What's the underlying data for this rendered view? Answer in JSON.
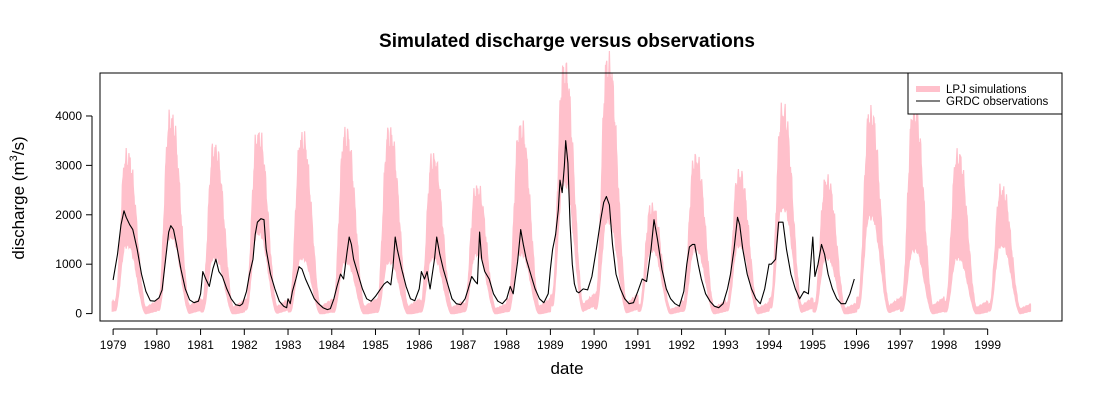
{
  "chart_data": {
    "type": "line",
    "title": "Simulated discharge versus observations",
    "xlabel": "date",
    "ylabel": "discharge (m³/s)",
    "ylabel_main": "discharge (m",
    "ylabel_sup": "3",
    "ylabel_end": "/s)",
    "xlim": [
      1978.7,
      2000.7
    ],
    "ylim": [
      -150,
      4870
    ],
    "x_ticks": [
      1979,
      1980,
      1981,
      1982,
      1983,
      1984,
      1985,
      1986,
      1987,
      1988,
      1989,
      1990,
      1991,
      1992,
      1993,
      1994,
      1995,
      1996,
      1997,
      1998,
      1999
    ],
    "x_tick_labels": [
      "1979",
      "1980",
      "1981",
      "1982",
      "1983",
      "1984",
      "1985",
      "1986",
      "1987",
      "1988",
      "1989",
      "1990",
      "1991",
      "1992",
      "1993",
      "1994",
      "1995",
      "1996",
      "1997",
      "1998",
      "1999"
    ],
    "y_ticks": [
      0,
      1000,
      2000,
      3000,
      4000
    ],
    "y_tick_labels": [
      "0",
      "1000",
      "2000",
      "3000",
      "4000"
    ],
    "legend": {
      "position": "top-right",
      "entries": [
        "LPJ simulations",
        "GRDC observations"
      ]
    },
    "series": [
      {
        "name": "LPJ simulations",
        "color": "#FFC0CB",
        "style": "band",
        "annual_peaks": [
          {
            "year": 1979,
            "low_max": 1700,
            "high_max": 3050
          },
          {
            "year": 1980,
            "low_max": 1900,
            "high_max": 3780
          },
          {
            "year": 1981,
            "low_max": 1400,
            "high_max": 3200
          },
          {
            "year": 1982,
            "low_max": 2000,
            "high_max": 3450
          },
          {
            "year": 1983,
            "low_max": 1400,
            "high_max": 3400
          },
          {
            "year": 1984,
            "low_max": 1300,
            "high_max": 3480
          },
          {
            "year": 1985,
            "low_max": 1300,
            "high_max": 3500
          },
          {
            "year": 1986,
            "low_max": 1400,
            "high_max": 3000
          },
          {
            "year": 1987,
            "low_max": 1500,
            "high_max": 2420
          },
          {
            "year": 1988,
            "low_max": 1500,
            "high_max": 3600
          },
          {
            "year": 1989,
            "low_max": 3200,
            "high_max": 4720
          },
          {
            "year": 1990,
            "low_max": 2300,
            "high_max": 4850
          },
          {
            "year": 1991,
            "low_max": 1600,
            "high_max": 2050
          },
          {
            "year": 1992,
            "low_max": 1600,
            "high_max": 3000
          },
          {
            "year": 1993,
            "low_max": 1700,
            "high_max": 2700
          },
          {
            "year": 1994,
            "low_max": 2600,
            "high_max": 3920
          },
          {
            "year": 1995,
            "low_max": 1400,
            "high_max": 2570
          },
          {
            "year": 1996,
            "low_max": 2400,
            "high_max": 3870
          },
          {
            "year": 1997,
            "low_max": 1600,
            "high_max": 3920
          },
          {
            "year": 1998,
            "low_max": 1400,
            "high_max": 3050
          },
          {
            "year": 1999,
            "low_max": 1700,
            "high_max": 2400
          }
        ]
      },
      {
        "name": "GRDC observations",
        "color": "#000000",
        "style": "line",
        "points": [
          [
            1979.0,
            680
          ],
          [
            1979.1,
            1200
          ],
          [
            1979.18,
            1800
          ],
          [
            1979.25,
            2080
          ],
          [
            1979.3,
            1950
          ],
          [
            1979.38,
            1800
          ],
          [
            1979.45,
            1700
          ],
          [
            1979.55,
            1300
          ],
          [
            1979.65,
            800
          ],
          [
            1979.75,
            450
          ],
          [
            1979.85,
            260
          ],
          [
            1979.95,
            250
          ],
          [
            1980.05,
            320
          ],
          [
            1980.12,
            480
          ],
          [
            1980.2,
            1100
          ],
          [
            1980.27,
            1650
          ],
          [
            1980.32,
            1780
          ],
          [
            1980.38,
            1700
          ],
          [
            1980.45,
            1400
          ],
          [
            1980.55,
            900
          ],
          [
            1980.65,
            500
          ],
          [
            1980.75,
            280
          ],
          [
            1980.85,
            220
          ],
          [
            1980.95,
            250
          ],
          [
            1981.0,
            400
          ],
          [
            1981.05,
            850
          ],
          [
            1981.12,
            700
          ],
          [
            1981.2,
            550
          ],
          [
            1981.28,
            900
          ],
          [
            1981.35,
            1100
          ],
          [
            1981.42,
            850
          ],
          [
            1981.5,
            750
          ],
          [
            1981.6,
            500
          ],
          [
            1981.7,
            300
          ],
          [
            1981.8,
            180
          ],
          [
            1981.9,
            160
          ],
          [
            1981.96,
            200
          ],
          [
            1982.05,
            450
          ],
          [
            1982.12,
            800
          ],
          [
            1982.2,
            1100
          ],
          [
            1982.25,
            1600
          ],
          [
            1982.3,
            1850
          ],
          [
            1982.38,
            1920
          ],
          [
            1982.45,
            1900
          ],
          [
            1982.5,
            1300
          ],
          [
            1982.6,
            800
          ],
          [
            1982.7,
            500
          ],
          [
            1982.8,
            250
          ],
          [
            1982.9,
            150
          ],
          [
            1982.97,
            120
          ],
          [
            1983.0,
            300
          ],
          [
            1983.05,
            200
          ],
          [
            1983.1,
            450
          ],
          [
            1983.18,
            700
          ],
          [
            1983.25,
            950
          ],
          [
            1983.32,
            900
          ],
          [
            1983.4,
            700
          ],
          [
            1983.5,
            500
          ],
          [
            1983.6,
            300
          ],
          [
            1983.7,
            200
          ],
          [
            1983.8,
            120
          ],
          [
            1983.9,
            80
          ],
          [
            1983.97,
            100
          ],
          [
            1984.05,
            300
          ],
          [
            1984.12,
            550
          ],
          [
            1984.2,
            800
          ],
          [
            1984.27,
            700
          ],
          [
            1984.35,
            1250
          ],
          [
            1984.4,
            1550
          ],
          [
            1984.45,
            1400
          ],
          [
            1984.5,
            1100
          ],
          [
            1984.6,
            800
          ],
          [
            1984.7,
            500
          ],
          [
            1984.8,
            300
          ],
          [
            1984.9,
            250
          ],
          [
            1985.0,
            350
          ],
          [
            1985.1,
            480
          ],
          [
            1985.2,
            600
          ],
          [
            1985.27,
            650
          ],
          [
            1985.35,
            580
          ],
          [
            1985.4,
            950
          ],
          [
            1985.45,
            1550
          ],
          [
            1985.5,
            1300
          ],
          [
            1985.6,
            900
          ],
          [
            1985.7,
            550
          ],
          [
            1985.8,
            300
          ],
          [
            1985.9,
            260
          ],
          [
            1986.0,
            500
          ],
          [
            1986.05,
            850
          ],
          [
            1986.12,
            700
          ],
          [
            1986.18,
            850
          ],
          [
            1986.25,
            500
          ],
          [
            1986.35,
            1100
          ],
          [
            1986.4,
            1550
          ],
          [
            1986.47,
            1200
          ],
          [
            1986.55,
            900
          ],
          [
            1986.65,
            600
          ],
          [
            1986.75,
            300
          ],
          [
            1986.85,
            200
          ],
          [
            1986.95,
            180
          ],
          [
            1987.05,
            300
          ],
          [
            1987.12,
            500
          ],
          [
            1987.2,
            750
          ],
          [
            1987.28,
            650
          ],
          [
            1987.33,
            600
          ],
          [
            1987.38,
            1650
          ],
          [
            1987.43,
            1100
          ],
          [
            1987.5,
            850
          ],
          [
            1987.6,
            700
          ],
          [
            1987.7,
            400
          ],
          [
            1987.8,
            250
          ],
          [
            1987.9,
            200
          ],
          [
            1988.0,
            300
          ],
          [
            1988.08,
            550
          ],
          [
            1988.15,
            400
          ],
          [
            1988.25,
            1050
          ],
          [
            1988.32,
            1700
          ],
          [
            1988.38,
            1400
          ],
          [
            1988.45,
            1100
          ],
          [
            1988.55,
            800
          ],
          [
            1988.65,
            500
          ],
          [
            1988.75,
            300
          ],
          [
            1988.85,
            220
          ],
          [
            1988.95,
            400
          ],
          [
            1989.0,
            900
          ],
          [
            1989.05,
            1300
          ],
          [
            1989.12,
            1600
          ],
          [
            1989.18,
            2100
          ],
          [
            1989.22,
            2700
          ],
          [
            1989.27,
            2450
          ],
          [
            1989.32,
            3000
          ],
          [
            1989.35,
            3500
          ],
          [
            1989.4,
            3050
          ],
          [
            1989.45,
            1800
          ],
          [
            1989.5,
            1000
          ],
          [
            1989.55,
            600
          ],
          [
            1989.6,
            450
          ],
          [
            1989.65,
            420
          ],
          [
            1989.75,
            500
          ],
          [
            1989.85,
            480
          ],
          [
            1989.95,
            750
          ],
          [
            1990.05,
            1300
          ],
          [
            1990.15,
            1900
          ],
          [
            1990.22,
            2250
          ],
          [
            1990.28,
            2370
          ],
          [
            1990.35,
            2200
          ],
          [
            1990.42,
            1400
          ],
          [
            1990.5,
            800
          ],
          [
            1990.6,
            500
          ],
          [
            1990.7,
            300
          ],
          [
            1990.8,
            200
          ],
          [
            1990.9,
            220
          ],
          [
            1991.0,
            450
          ],
          [
            1991.1,
            700
          ],
          [
            1991.2,
            650
          ],
          [
            1991.3,
            1300
          ],
          [
            1991.37,
            1900
          ],
          [
            1991.45,
            1500
          ],
          [
            1991.55,
            900
          ],
          [
            1991.65,
            500
          ],
          [
            1991.75,
            300
          ],
          [
            1991.85,
            200
          ],
          [
            1991.95,
            150
          ],
          [
            1992.05,
            450
          ],
          [
            1992.12,
            1000
          ],
          [
            1992.18,
            1350
          ],
          [
            1992.25,
            1400
          ],
          [
            1992.3,
            1400
          ],
          [
            1992.38,
            1000
          ],
          [
            1992.45,
            700
          ],
          [
            1992.55,
            400
          ],
          [
            1992.65,
            250
          ],
          [
            1992.75,
            150
          ],
          [
            1992.85,
            120
          ],
          [
            1992.95,
            200
          ],
          [
            1993.05,
            500
          ],
          [
            1993.12,
            800
          ],
          [
            1993.2,
            1300
          ],
          [
            1993.28,
            1950
          ],
          [
            1993.33,
            1800
          ],
          [
            1993.4,
            1300
          ],
          [
            1993.5,
            800
          ],
          [
            1993.6,
            500
          ],
          [
            1993.7,
            300
          ],
          [
            1993.8,
            200
          ],
          [
            1993.9,
            500
          ],
          [
            1994.0,
            1000
          ],
          [
            1994.05,
            1000
          ],
          [
            1994.15,
            1100
          ],
          [
            1994.22,
            1850
          ],
          [
            1994.28,
            1850
          ],
          [
            1994.32,
            1850
          ],
          [
            1994.4,
            1300
          ],
          [
            1994.5,
            800
          ],
          [
            1994.6,
            500
          ],
          [
            1994.7,
            300
          ],
          [
            1994.8,
            450
          ],
          [
            1994.9,
            400
          ],
          [
            1995.0,
            1550
          ],
          [
            1995.05,
            750
          ],
          [
            1995.12,
            1000
          ],
          [
            1995.2,
            1400
          ],
          [
            1995.27,
            1200
          ],
          [
            1995.35,
            800
          ],
          [
            1995.45,
            500
          ],
          [
            1995.55,
            300
          ],
          [
            1995.65,
            200
          ],
          [
            1995.75,
            200
          ],
          [
            1995.85,
            400
          ],
          [
            1995.95,
            700
          ]
        ]
      }
    ]
  }
}
